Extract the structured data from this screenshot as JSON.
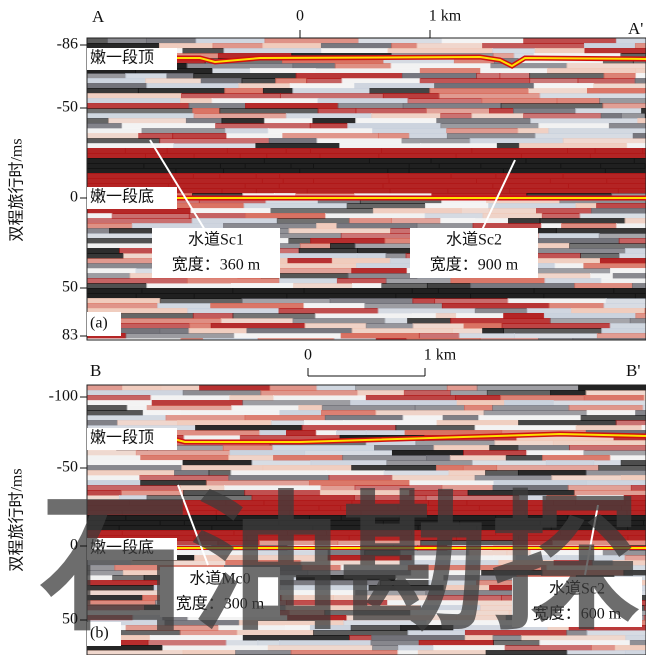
{
  "panels": [
    {
      "label": "(a)",
      "left": "A",
      "right": "A'",
      "scale": {
        "start": "0",
        "end": "1 km"
      },
      "y_axis_title": "双程旅行时/ms",
      "yticks": [
        "-86",
        "-50",
        "0",
        "50",
        "83"
      ],
      "top_label": "嫩一段顶",
      "bottom_label": "嫩一段底",
      "channels": [
        {
          "name": "水道Sc1",
          "width": "宽度：360 m"
        },
        {
          "name": "水道Sc2",
          "width": "宽度：900 m"
        }
      ]
    },
    {
      "label": "(b)",
      "left": "B",
      "right": "B'",
      "scale": {
        "start": "0",
        "end": "1 km"
      },
      "y_axis_title": "双程旅行时/ms",
      "yticks": [
        "-100",
        "-50",
        "0",
        "50"
      ],
      "top_label": "嫩一段顶",
      "bottom_label": "嫩一段底",
      "channels": [
        {
          "name": "水道Mc0",
          "width": "宽度：300 m"
        },
        {
          "name": "水道Sc2",
          "width": "宽度：600 m"
        }
      ]
    }
  ],
  "watermark": "石油勘探"
}
